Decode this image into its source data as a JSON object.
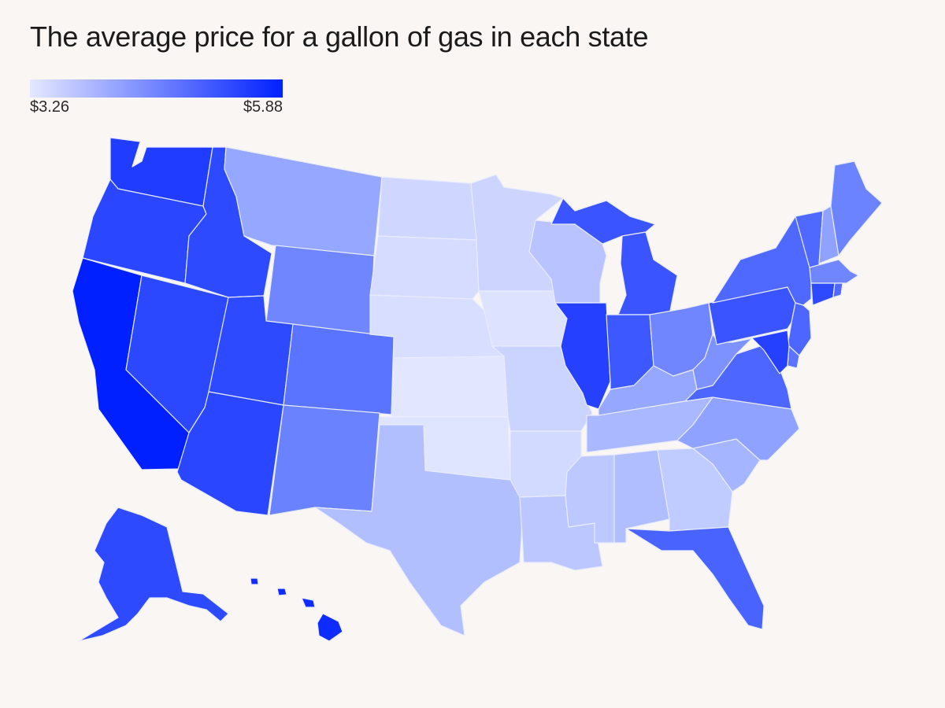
{
  "title": "The average price for a gallon of gas in each state",
  "legend": {
    "min_label": "$3.26",
    "max_label": "$5.88",
    "min_value": 3.26,
    "max_value": 5.88,
    "color_low": "#e4e8ff",
    "color_high": "#0020ff"
  },
  "state_colors": {
    "WA": "#1f3cff",
    "OR": "#2a47ff",
    "CA": "#0020ff",
    "NV": "#2c48ff",
    "ID": "#2e4aff",
    "MT": "#95a7ff",
    "WY": "#6f86ff",
    "UT": "#2e4aff",
    "AZ": "#2a46ff",
    "CO": "#5a74ff",
    "NM": "#6b82ff",
    "ND": "#cfd6ff",
    "SD": "#d6dcff",
    "NE": "#d8deff",
    "KS": "#e2e6ff",
    "OK": "#e0e5ff",
    "TX": "#b2bfff",
    "MN": "#cdd5ff",
    "IA": "#dde3ff",
    "MO": "#cbd3ff",
    "AR": "#d3daff",
    "LA": "#bcc7ff",
    "WI": "#b8c3ff",
    "IL": "#2541ff",
    "MI": "#3a55ff",
    "IN": "#3e58ff",
    "OH": "#6f86ff",
    "KY": "#95a7ff",
    "TN": "#aab8ff",
    "MS": "#bdc8ff",
    "AL": "#b0bdff",
    "GA": "#c0cbff",
    "FL": "#4963ff",
    "SC": "#a6b5ff",
    "NC": "#8fa2ff",
    "VA": "#4d66ff",
    "WV": "#7d92ff",
    "PA": "#3a55ff",
    "NY": "#4f69ff",
    "VT": "#4f69ff",
    "NH": "#8fa2ff",
    "ME": "#6c83ff",
    "MA": "#6f86ff",
    "CT": "#2e4aff",
    "RI": "#4f69ff",
    "NJ": "#4d66ff",
    "DE": "#5a74ff",
    "MD": "#2541ff",
    "AK": "#2e4aff",
    "HI": "#0f2cff"
  }
}
